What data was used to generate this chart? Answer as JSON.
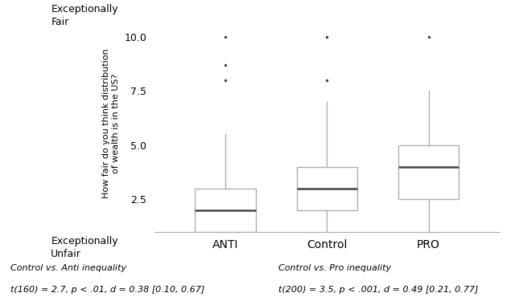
{
  "groups": [
    "ANTI",
    "Control",
    "PRO"
  ],
  "ylabel": "How fair do you think distribution\nof wealth is in the US?",
  "y_left_label_top": "Exceptionally\nFair",
  "y_left_label_bottom": "Exceptionally\nUnfair",
  "yticks": [
    2.5,
    5.0,
    7.5,
    10.0
  ],
  "ylim": [
    1.0,
    11.0
  ],
  "box_data": {
    "ANTI": {
      "whisker_low": 1.0,
      "q1": 1.0,
      "median": 2.0,
      "q3": 3.0,
      "whisker_high": 5.5,
      "fliers": [
        8.0,
        8.7,
        10.0
      ]
    },
    "Control": {
      "whisker_low": 1.0,
      "q1": 2.0,
      "median": 3.0,
      "q3": 4.0,
      "whisker_high": 7.0,
      "fliers": [
        8.0,
        10.0
      ]
    },
    "PRO": {
      "whisker_low": 1.0,
      "q1": 2.5,
      "median": 4.0,
      "q3": 5.0,
      "whisker_high": 7.5,
      "fliers": [
        10.0
      ]
    }
  },
  "annotation_left_line1": "Control vs. Anti inequality",
  "annotation_left_line2": "t(160) = 2.7, p < .01, d = 0.38 [0.10, 0.67]",
  "annotation_right_line1": "Control vs. Pro inequality",
  "annotation_right_line2": "t(200) = 3.5, p < .001, d = 0.49 [0.21, 0.77]",
  "box_edgecolor": "#b0b0b0",
  "box_facecolor": "white",
  "median_color": "#444444",
  "whisker_color": "#b0b0b0",
  "flier_color": "#444444",
  "background_color": "white",
  "spine_color": "#aaaaaa"
}
